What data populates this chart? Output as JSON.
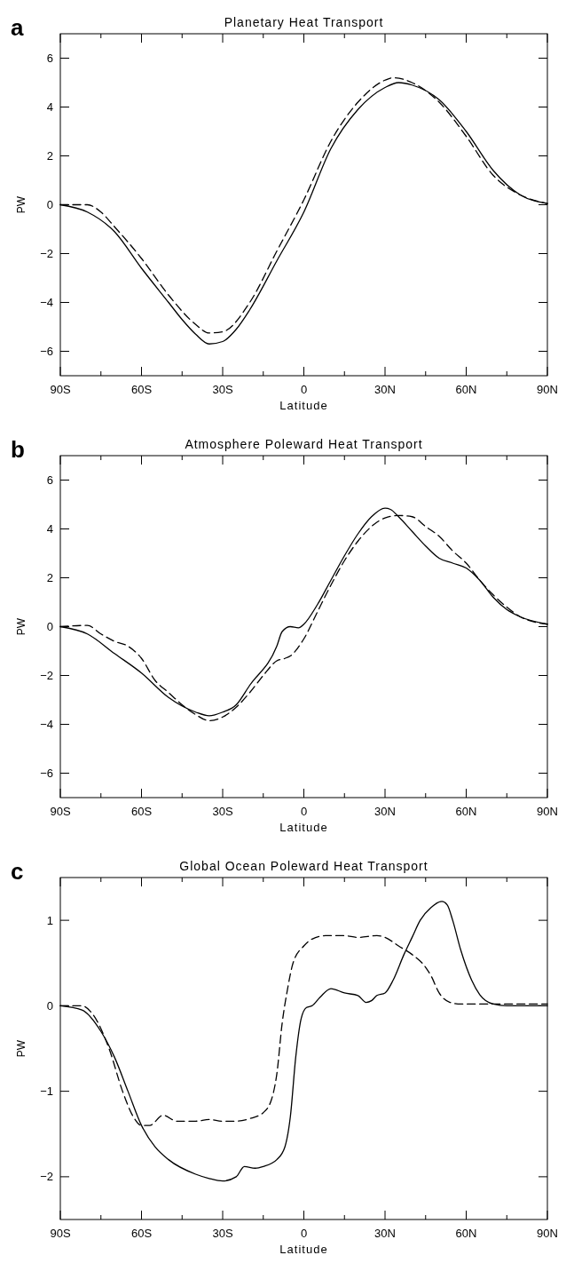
{
  "chart_data": [
    {
      "type": "line",
      "title": "Planetary Heat Transport",
      "xlabel": "Latitude",
      "ylabel": "PW",
      "annotations": [
        "a"
      ],
      "xlim": [
        -90,
        90
      ],
      "ylim": [
        -7,
        7
      ],
      "xticks": [
        {
          "value": -90,
          "label": "90S"
        },
        {
          "value": -75,
          "label": null
        },
        {
          "value": -60,
          "label": "60S"
        },
        {
          "value": -45,
          "label": null
        },
        {
          "value": -30,
          "label": "30S"
        },
        {
          "value": -15,
          "label": null
        },
        {
          "value": 0,
          "label": "0"
        },
        {
          "value": 15,
          "label": null
        },
        {
          "value": 30,
          "label": "30N"
        },
        {
          "value": 45,
          "label": null
        },
        {
          "value": 60,
          "label": "60N"
        },
        {
          "value": 75,
          "label": null
        },
        {
          "value": 90,
          "label": "90N"
        }
      ],
      "yticks": [
        -6,
        -4,
        -2,
        0,
        2,
        4,
        6
      ],
      "grid": false,
      "series": [
        {
          "color": "#000000",
          "line_style": "solid",
          "x": [
            -90,
            -80,
            -70,
            -60,
            -50,
            -45,
            -40,
            -35,
            -30,
            -25,
            -20,
            -10,
            0,
            10,
            20,
            30,
            35,
            40,
            50,
            60,
            70,
            80,
            90
          ],
          "values": [
            0,
            -0.3,
            -1.1,
            -2.6,
            -4.0,
            -4.7,
            -5.3,
            -5.7,
            -5.6,
            -5.1,
            -4.3,
            -2.3,
            -0.3,
            2.3,
            3.9,
            4.8,
            5.0,
            4.9,
            4.3,
            3.0,
            1.4,
            0.4,
            0.05
          ]
        },
        {
          "color": "#000000",
          "line_style": "dashed",
          "x": [
            -90,
            -80,
            -75,
            -70,
            -60,
            -50,
            -40,
            -35,
            -30,
            -20,
            -10,
            0,
            10,
            20,
            30,
            33,
            40,
            50,
            60,
            70,
            80,
            90
          ],
          "values": [
            0,
            0,
            -0.3,
            -0.9,
            -2.2,
            -3.7,
            -4.9,
            -5.25,
            -5.2,
            -4.0,
            -1.9,
            0.2,
            2.6,
            4.2,
            5.1,
            5.2,
            5.0,
            4.2,
            2.8,
            1.2,
            0.4,
            0.05
          ]
        }
      ]
    },
    {
      "type": "line",
      "title": "Atmosphere Poleward Heat Transport",
      "xlabel": "Latitude",
      "ylabel": "PW",
      "annotations": [
        "b"
      ],
      "xlim": [
        -90,
        90
      ],
      "ylim": [
        -7,
        7
      ],
      "xticks": [
        {
          "value": -90,
          "label": "90S"
        },
        {
          "value": -75,
          "label": null
        },
        {
          "value": -60,
          "label": "60S"
        },
        {
          "value": -45,
          "label": null
        },
        {
          "value": -30,
          "label": "30S"
        },
        {
          "value": -15,
          "label": null
        },
        {
          "value": 0,
          "label": "0"
        },
        {
          "value": 15,
          "label": null
        },
        {
          "value": 30,
          "label": "30N"
        },
        {
          "value": 45,
          "label": null
        },
        {
          "value": 60,
          "label": "60N"
        },
        {
          "value": 75,
          "label": null
        },
        {
          "value": 90,
          "label": "90N"
        }
      ],
      "yticks": [
        -6,
        -4,
        -2,
        0,
        2,
        4,
        6
      ],
      "grid": false,
      "series": [
        {
          "color": "#000000",
          "line_style": "solid",
          "x": [
            -90,
            -80,
            -70,
            -60,
            -50,
            -40,
            -35,
            -30,
            -25,
            -20,
            -10,
            -8,
            -5,
            -2,
            0,
            5,
            10,
            15,
            20,
            25,
            30,
            32,
            35,
            40,
            45,
            50,
            55,
            60,
            65,
            70,
            75,
            80,
            90
          ],
          "values": [
            0,
            -0.3,
            -1.1,
            -1.9,
            -2.9,
            -3.5,
            -3.65,
            -3.5,
            -3.2,
            -2.4,
            -0.8,
            -0.2,
            0.0,
            -0.05,
            0.1,
            0.9,
            1.9,
            2.9,
            3.8,
            4.5,
            4.85,
            4.8,
            4.5,
            3.9,
            3.3,
            2.8,
            2.6,
            2.4,
            1.9,
            1.2,
            0.7,
            0.4,
            0.1
          ]
        },
        {
          "color": "#000000",
          "line_style": "dashed",
          "x": [
            -90,
            -80,
            -75,
            -70,
            -65,
            -60,
            -55,
            -50,
            -45,
            -40,
            -35,
            -30,
            -25,
            -20,
            -15,
            -10,
            -7,
            -5,
            0,
            5,
            10,
            15,
            20,
            25,
            30,
            35,
            40,
            45,
            50,
            55,
            60,
            65,
            70,
            75,
            80,
            90
          ],
          "values": [
            0,
            0.05,
            -0.3,
            -0.6,
            -0.8,
            -1.3,
            -2.2,
            -2.7,
            -3.2,
            -3.6,
            -3.85,
            -3.7,
            -3.3,
            -2.7,
            -2.0,
            -1.4,
            -1.3,
            -1.2,
            -0.5,
            0.6,
            1.7,
            2.7,
            3.5,
            4.1,
            4.45,
            4.55,
            4.5,
            4.1,
            3.7,
            3.1,
            2.6,
            1.9,
            1.3,
            0.8,
            0.4,
            0.1
          ]
        }
      ]
    },
    {
      "type": "line",
      "title": "Global Ocean Poleward Heat Transport",
      "xlabel": "Latitude",
      "ylabel": "PW",
      "annotations": [
        "c"
      ],
      "xlim": [
        -90,
        90
      ],
      "ylim": [
        -2.5,
        1.5
      ],
      "xticks": [
        {
          "value": -90,
          "label": "90S"
        },
        {
          "value": -75,
          "label": null
        },
        {
          "value": -60,
          "label": "60S"
        },
        {
          "value": -45,
          "label": null
        },
        {
          "value": -30,
          "label": "30S"
        },
        {
          "value": -15,
          "label": null
        },
        {
          "value": 0,
          "label": "0"
        },
        {
          "value": 15,
          "label": null
        },
        {
          "value": 30,
          "label": "30N"
        },
        {
          "value": 45,
          "label": null
        },
        {
          "value": 60,
          "label": "60N"
        },
        {
          "value": 75,
          "label": null
        },
        {
          "value": 90,
          "label": "90N"
        }
      ],
      "yticks": [
        -2,
        -1,
        0,
        1
      ],
      "grid": false,
      "series": [
        {
          "color": "#000000",
          "line_style": "solid",
          "x": [
            -90,
            -82,
            -75,
            -70,
            -65,
            -60,
            -55,
            -50,
            -40,
            -35,
            -30,
            -25,
            -22,
            -18,
            -15,
            -10,
            -7,
            -5,
            -3,
            -1,
            1,
            3,
            6,
            10,
            15,
            20,
            23,
            25,
            27,
            30,
            33,
            37,
            40,
            43,
            47,
            51,
            53,
            55,
            58,
            62,
            65,
            70,
            75,
            90
          ],
          "values": [
            0,
            -0.05,
            -0.3,
            -0.6,
            -1.0,
            -1.4,
            -1.65,
            -1.8,
            -1.97,
            -2.02,
            -2.05,
            -2.0,
            -1.88,
            -1.9,
            -1.88,
            -1.8,
            -1.65,
            -1.3,
            -0.6,
            -0.15,
            -0.02,
            0.0,
            0.1,
            0.2,
            0.15,
            0.12,
            0.04,
            0.06,
            0.12,
            0.15,
            0.3,
            0.6,
            0.8,
            1.0,
            1.15,
            1.22,
            1.18,
            1.0,
            0.65,
            0.3,
            0.13,
            0.02,
            0.0,
            0.0
          ]
        },
        {
          "color": "#000000",
          "line_style": "dashed",
          "x": [
            -90,
            -82,
            -78,
            -72,
            -67,
            -63,
            -60,
            -57,
            -52,
            -47,
            -40,
            -35,
            -30,
            -25,
            -20,
            -15,
            -12,
            -10,
            -8,
            -6,
            -4,
            0,
            3,
            8,
            15,
            20,
            27,
            30,
            35,
            40,
            45,
            47,
            50,
            54,
            58,
            70,
            90
          ],
          "values": [
            0,
            0.0,
            -0.1,
            -0.5,
            -1.0,
            -1.3,
            -1.4,
            -1.4,
            -1.28,
            -1.35,
            -1.35,
            -1.33,
            -1.35,
            -1.35,
            -1.32,
            -1.25,
            -1.1,
            -0.8,
            -0.2,
            0.2,
            0.5,
            0.7,
            0.78,
            0.82,
            0.82,
            0.8,
            0.82,
            0.8,
            0.7,
            0.6,
            0.45,
            0.35,
            0.15,
            0.04,
            0.02,
            0.02,
            0.02
          ]
        }
      ]
    }
  ]
}
